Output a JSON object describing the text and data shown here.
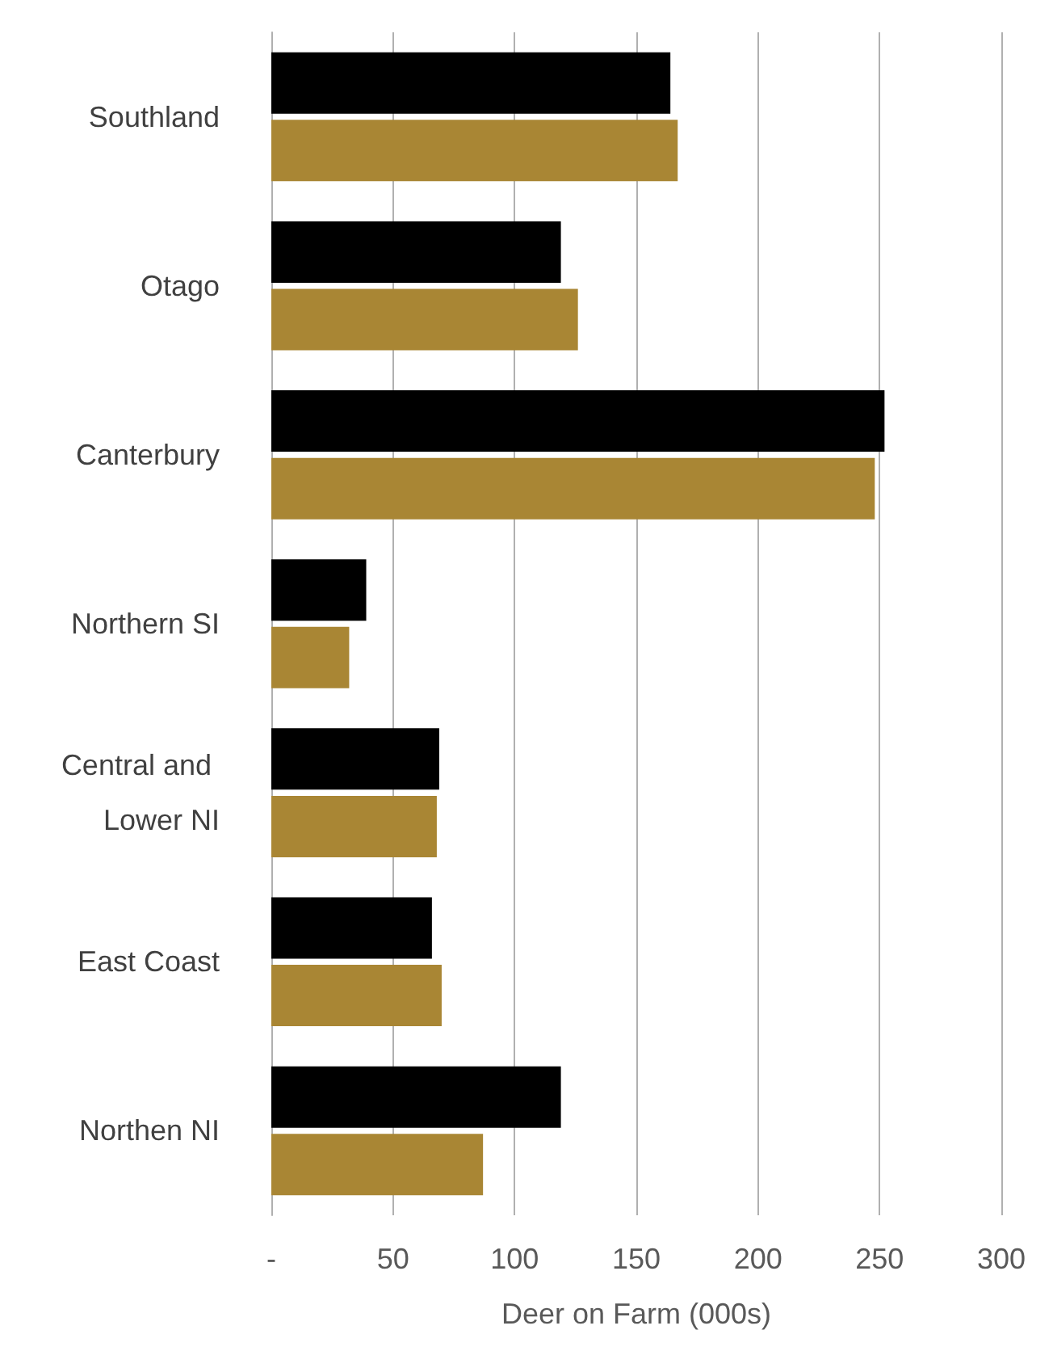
{
  "chart_data": {
    "type": "bar",
    "orientation": "horizontal",
    "xlabel": "Deer on Farm (000s)",
    "categories": [
      "Southland",
      "Otago",
      "Canterbury",
      "Northern SI",
      "Central and Lower NI",
      "East Coast",
      "Northen NI"
    ],
    "series": [
      {
        "color": "#000000",
        "values": [
          164,
          119,
          252,
          39,
          69,
          66,
          119
        ]
      },
      {
        "color": "#a98634",
        "values": [
          167,
          126,
          248,
          32,
          68,
          70,
          87
        ]
      }
    ],
    "xlim": [
      0,
      300
    ],
    "xticks": [
      {
        "value": 0,
        "label": "-"
      },
      50,
      100,
      150,
      200,
      250,
      300
    ],
    "grid": "x"
  }
}
